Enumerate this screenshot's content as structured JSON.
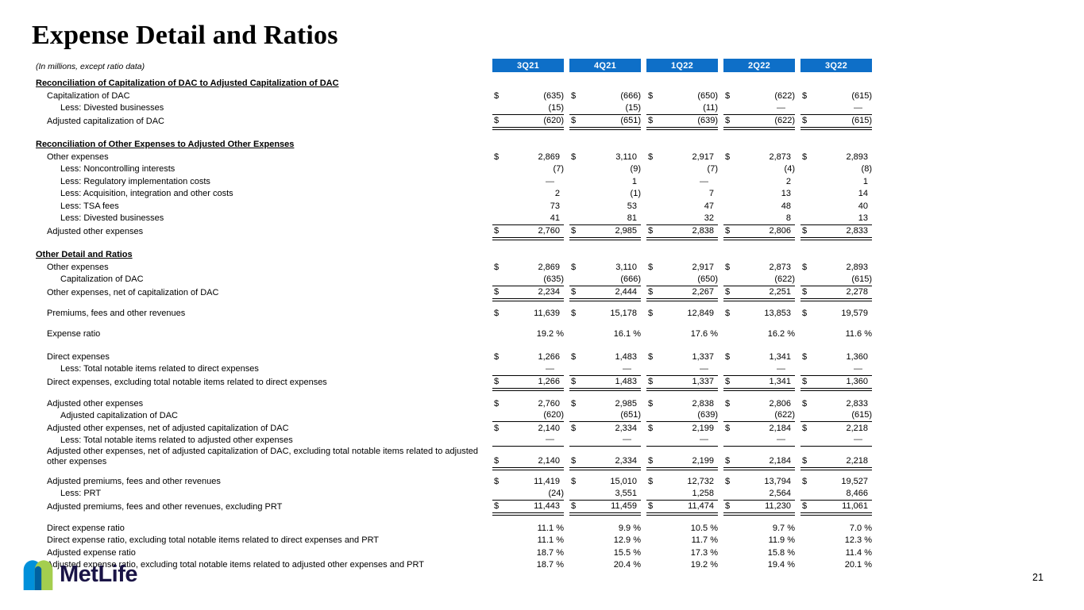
{
  "page": {
    "title": "Expense Detail and Ratios",
    "subtitle": "(In millions, except ratio data)",
    "page_number": "21",
    "logo_text": "MetLife"
  },
  "colors": {
    "header_blue": "#0E6FC8",
    "logo_blue": "#0090DA",
    "logo_green": "#A4CE4E",
    "logo_overlap": "#0061A0",
    "logo_text_navy": "#1A1446"
  },
  "table": {
    "columns": [
      "3Q21",
      "4Q21",
      "1Q22",
      "2Q22",
      "3Q22"
    ],
    "rows": [
      {
        "type": "section",
        "label": "Reconciliation of Capitalization of DAC to Adjusted Capitalization of DAC"
      },
      {
        "type": "data",
        "label": "Capitalization of DAC",
        "indent": 1,
        "dollar": true,
        "values": [
          "(635)",
          "(666)",
          "(650)",
          "(622)",
          "(615)"
        ]
      },
      {
        "type": "data",
        "label": "Less: Divested businesses",
        "indent": 2,
        "dollar": false,
        "values": [
          "(15)",
          "(15)",
          "(11)",
          "—",
          "—"
        ]
      },
      {
        "type": "data",
        "label": "Adjusted capitalization of DAC",
        "indent": 1,
        "dollar": true,
        "line_top": true,
        "line_double": true,
        "values": [
          "(620)",
          "(651)",
          "(639)",
          "(622)",
          "(615)"
        ]
      },
      {
        "type": "spacer",
        "h": 13
      },
      {
        "type": "section",
        "label": "Reconciliation of Other Expenses to Adjusted Other Expenses"
      },
      {
        "type": "data",
        "label": "Other expenses",
        "indent": 1,
        "dollar": true,
        "values": [
          "2,869",
          "3,110",
          "2,917",
          "2,873",
          "2,893"
        ]
      },
      {
        "type": "data",
        "label": "Less: Noncontrolling interests",
        "indent": 2,
        "dollar": false,
        "values": [
          "(7)",
          "(9)",
          "(7)",
          "(4)",
          "(8)"
        ]
      },
      {
        "type": "data",
        "label": "Less: Regulatory implementation costs",
        "indent": 2,
        "dollar": false,
        "values": [
          "—",
          "1",
          "—",
          "2",
          "1"
        ]
      },
      {
        "type": "data",
        "label": "Less: Acquisition, integration and other costs",
        "indent": 2,
        "dollar": false,
        "values": [
          "2",
          "(1)",
          "7",
          "13",
          "14"
        ]
      },
      {
        "type": "data",
        "label": "Less: TSA fees",
        "indent": 2,
        "dollar": false,
        "values": [
          "73",
          "53",
          "47",
          "48",
          "40"
        ]
      },
      {
        "type": "data",
        "label": "Less: Divested businesses",
        "indent": 2,
        "dollar": false,
        "values": [
          "41",
          "81",
          "32",
          "8",
          "13"
        ]
      },
      {
        "type": "data",
        "label": "Adjusted other expenses",
        "indent": 1,
        "dollar": true,
        "line_top": true,
        "line_double": true,
        "values": [
          "2,760",
          "2,985",
          "2,838",
          "2,806",
          "2,833"
        ]
      },
      {
        "type": "spacer",
        "h": 13
      },
      {
        "type": "section",
        "label": "Other Detail and Ratios "
      },
      {
        "type": "data",
        "label": "Other expenses",
        "indent": 1,
        "dollar": true,
        "values": [
          "2,869",
          "3,110",
          "2,917",
          "2,873",
          "2,893"
        ]
      },
      {
        "type": "data",
        "label": "Capitalization of DAC",
        "indent": 2,
        "dollar": false,
        "values": [
          "(635)",
          "(666)",
          "(650)",
          "(622)",
          "(615)"
        ]
      },
      {
        "type": "data",
        "label": "Other expenses, net of capitalization of DAC",
        "indent": 1,
        "dollar": true,
        "line_top": true,
        "line_double": true,
        "values": [
          "2,234",
          "2,444",
          "2,267",
          "2,251",
          "2,278"
        ]
      },
      {
        "type": "spacer",
        "h": 10
      },
      {
        "type": "data",
        "label": "Premiums, fees and other revenues",
        "indent": 1,
        "dollar": true,
        "values": [
          "11,639",
          "15,178",
          "12,849",
          "13,853",
          "19,579"
        ]
      },
      {
        "type": "spacer",
        "h": 11
      },
      {
        "type": "data",
        "label": "Expense ratio",
        "indent": 1,
        "dollar": false,
        "values": [
          "19.2 %",
          "16.1 %",
          "17.6 %",
          "16.2 %",
          "11.6 %"
        ]
      },
      {
        "type": "spacer",
        "h": 13
      },
      {
        "type": "data",
        "label": "Direct expenses",
        "indent": 1,
        "dollar": true,
        "values": [
          "1,266",
          "1,483",
          "1,337",
          "1,341",
          "1,360"
        ]
      },
      {
        "type": "data",
        "label": "Less: Total notable items related to direct expenses",
        "indent": 2,
        "dollar": false,
        "values": [
          "—",
          "—",
          "—",
          "—",
          "—"
        ]
      },
      {
        "type": "data",
        "label": "Direct expenses, excluding total notable items related to direct expenses",
        "indent": 1,
        "dollar": true,
        "line_top": true,
        "line_double": true,
        "values": [
          "1,266",
          "1,483",
          "1,337",
          "1,341",
          "1,360"
        ]
      },
      {
        "type": "spacer",
        "h": 11
      },
      {
        "type": "data",
        "label": "Adjusted other expenses",
        "indent": 1,
        "dollar": true,
        "values": [
          "2,760",
          "2,985",
          "2,838",
          "2,806",
          "2,833"
        ]
      },
      {
        "type": "data",
        "label": "Adjusted capitalization of DAC",
        "indent": 2,
        "dollar": false,
        "line_bottom": true,
        "values": [
          "(620)",
          "(651)",
          "(639)",
          "(622)",
          "(615)"
        ]
      },
      {
        "type": "data",
        "label": "Adjusted other expenses, net of adjusted capitalization of DAC",
        "indent": 1,
        "dollar": true,
        "values": [
          "2,140",
          "2,334",
          "2,199",
          "2,184",
          "2,218"
        ]
      },
      {
        "type": "data",
        "label": "Less: Total notable items related to adjusted other expenses",
        "indent": 2,
        "dollar": false,
        "line_bottom": true,
        "values": [
          "—",
          "—",
          "—",
          "—",
          "—"
        ]
      },
      {
        "type": "data",
        "label": "Adjusted other expenses, net of adjusted capitalization of DAC, excluding total notable items related to adjusted other expenses",
        "indent": 1,
        "dollar": true,
        "line_double": true,
        "values": [
          "2,140",
          "2,334",
          "2,199",
          "2,184",
          "2,218"
        ]
      },
      {
        "type": "spacer",
        "h": 9
      },
      {
        "type": "data",
        "label": "Adjusted premiums, fees and other revenues",
        "indent": 1,
        "dollar": true,
        "values": [
          "11,419",
          "15,010",
          "12,732",
          "13,794",
          "19,527"
        ]
      },
      {
        "type": "data",
        "label": "Less: PRT",
        "indent": 2,
        "dollar": false,
        "values": [
          "(24)",
          "3,551",
          "1,258",
          "2,564",
          "8,466"
        ]
      },
      {
        "type": "data",
        "label": "Adjusted premiums, fees and other revenues, excluding PRT",
        "indent": 1,
        "dollar": true,
        "line_top": true,
        "line_double": true,
        "values": [
          "11,443",
          "11,459",
          "11,474",
          "11,230",
          "11,061"
        ]
      },
      {
        "type": "spacer",
        "h": 11
      },
      {
        "type": "data",
        "label": "Direct expense ratio",
        "indent": 1,
        "dollar": false,
        "values": [
          "11.1 %",
          "9.9 %",
          "10.5 %",
          "9.7 %",
          "7.0 %"
        ]
      },
      {
        "type": "data",
        "label": "Direct expense ratio, excluding total notable items related to direct expenses and PRT",
        "indent": 1,
        "dollar": false,
        "values": [
          "11.1 %",
          "12.9 %",
          "11.7 %",
          "11.9 %",
          "12.3 %"
        ]
      },
      {
        "type": "data",
        "label": "Adjusted expense ratio",
        "indent": 1,
        "dollar": false,
        "values": [
          "18.7 %",
          "15.5 %",
          "17.3 %",
          "15.8 %",
          "11.4 %"
        ]
      },
      {
        "type": "data",
        "label": "Adjusted expense ratio, excluding total notable items related to adjusted other expenses and PRT",
        "indent": 1,
        "dollar": false,
        "values": [
          "18.7 %",
          "20.4 %",
          "19.2 %",
          "19.4 %",
          "20.1 %"
        ]
      }
    ]
  }
}
